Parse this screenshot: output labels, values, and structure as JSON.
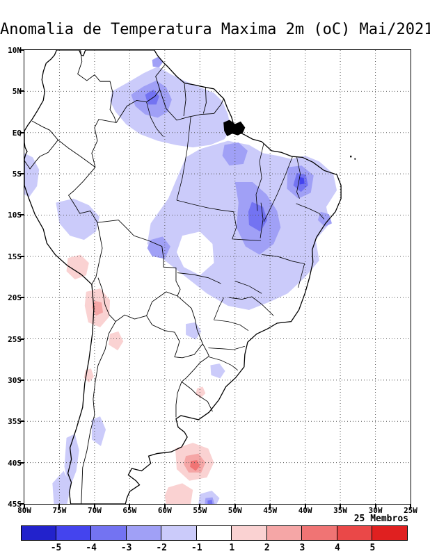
{
  "title": "Anomalia de Temperatura Maxima 2m (oC) Mai/2021",
  "members_label": "25 Membros",
  "axes": {
    "lat_labels": [
      "10N",
      "5N",
      "EQ",
      "5S",
      "10S",
      "15S",
      "20S",
      "25S",
      "30S",
      "35S",
      "40S",
      "45S"
    ],
    "lon_labels": [
      "80W",
      "75W",
      "70W",
      "65W",
      "60W",
      "55W",
      "50W",
      "45W",
      "40W",
      "35W",
      "30W",
      "25W"
    ]
  },
  "colorbar": {
    "tick_labels": [
      "-5",
      "-4",
      "-3",
      "-2",
      "-1",
      "1",
      "2",
      "3",
      "4",
      "5"
    ],
    "colors": [
      "#2222cc",
      "#4444ee",
      "#7373f2",
      "#a0a0f6",
      "#cbcbfa",
      "#ffffff",
      "#fad2d2",
      "#f5a6a6",
      "#f07474",
      "#ea4848",
      "#e02020"
    ]
  },
  "palette": {
    "n1": "#cbcbfa",
    "n2": "#a0a0f6",
    "n3": "#7373f2",
    "n4": "#4444ee",
    "p1": "#fad2d2",
    "p2": "#f5a6a6",
    "p3": "#f07474",
    "hole": "#ffffff"
  },
  "chart_data": {
    "type": "heatmap",
    "title": "Anomalia de Temperatura Maxima 2m (oC) Mai/2021",
    "region": "South America",
    "variable": "Maximum 2m temperature anomaly",
    "units": "oC",
    "period": "Mai/2021",
    "ensemble_members": 25,
    "x_axis": {
      "label": "longitude",
      "range": [
        "80W",
        "25W"
      ],
      "ticks": [
        "80W",
        "75W",
        "70W",
        "65W",
        "60W",
        "55W",
        "50W",
        "45W",
        "40W",
        "35W",
        "30W",
        "25W"
      ]
    },
    "y_axis": {
      "label": "latitude",
      "range": [
        "45S",
        "10N"
      ],
      "ticks": [
        "10N",
        "5N",
        "EQ",
        "5S",
        "10S",
        "15S",
        "20S",
        "25S",
        "30S",
        "35S",
        "40S",
        "45S"
      ]
    },
    "colorbar_levels": [
      -5,
      -4,
      -3,
      -2,
      -1,
      1,
      2,
      3,
      4,
      5
    ],
    "grid": true,
    "features": [
      "Widespread negative anomalies (-1 to -2 oC) over northern and central-eastern Brazil",
      "Stronger negative cores (-2 to -4 oC) over Tocantins/western Bahia and Ceara/Piaui and near 3N 61W",
      "Negative anomalies near the Amazon mouth and along the Guianas",
      "Positive anomalies (+1 to +2 oC) along the Andes of southern Peru, northern Chile, Bolivia and NW Argentina",
      "Positive core (+2 to +4 oC) over the South Atlantic near 40S 55W",
      "Weak negative anomalies along the southern Chile coast and near 45S 54W",
      "Mostly neutral (white) over southeastern Brazil, Argentina pampas and western Amazonia"
    ]
  }
}
